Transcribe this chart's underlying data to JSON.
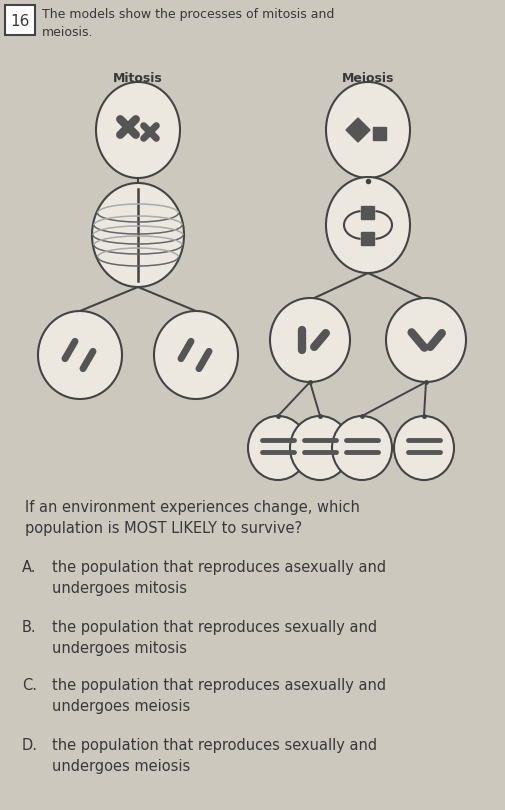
{
  "bg_color": "#ccc8be",
  "text_color": "#3a3838",
  "question_number": "16",
  "intro_text": "The models show the processes of mitosis and\nmeiosis.",
  "mitosis_label": "Mitosis",
  "meiosis_label": "Meiosis",
  "question_text": "If an environment experiences change, which\npopulation is MOST LIKELY to survive?",
  "choices": [
    {
      "letter": "A.",
      "text": "the population that reproduces asexually and\nundergoes mitosis"
    },
    {
      "letter": "B.",
      "text": "the population that reproduces sexually and\nundergoes mitosis"
    },
    {
      "letter": "C.",
      "text": "the population that reproduces asexually and\nundergoes meiosis"
    },
    {
      "letter": "D.",
      "text": "the population that reproduces sexually and\nundergoes meiosis"
    }
  ],
  "cell_bg": "#ede8df",
  "line_color": "#444444",
  "chrom_color": "#555555"
}
